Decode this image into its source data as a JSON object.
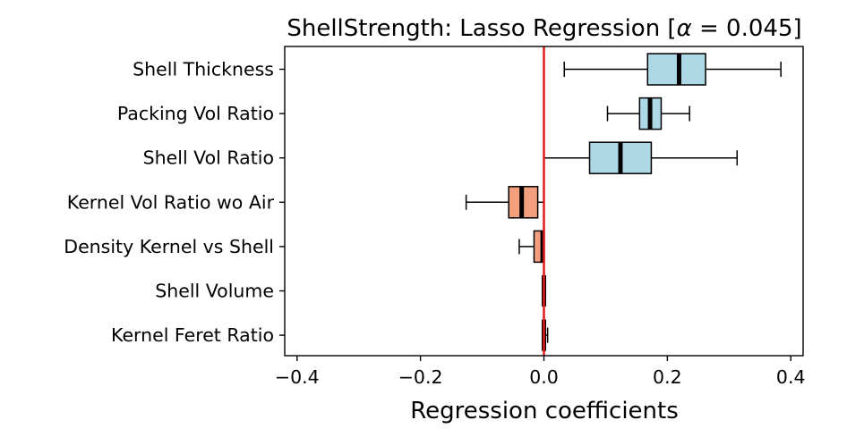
{
  "chart_data": {
    "type": "boxplot",
    "orientation": "horizontal",
    "title_prefix": "ShellStrength: Lasso Regression [",
    "title_alpha": "α",
    "title_suffix": " = 0.045]",
    "xlabel": "Regression coefficients",
    "xlim": [
      -0.42,
      0.42
    ],
    "xticks": [
      -0.4,
      -0.2,
      0.0,
      0.2,
      0.4
    ],
    "xtick_labels": [
      "−0.4",
      "−0.2",
      "0.0",
      "0.2",
      "0.4"
    ],
    "reference_line": {
      "x": 0.0,
      "color": "#e31a1c"
    },
    "colors": {
      "positive": "#add8e6",
      "negative": "#f4a07f",
      "median": "#000000"
    },
    "categories": [
      {
        "label": "Shell Thickness",
        "whisker_low": 0.033,
        "q1": 0.168,
        "median": 0.219,
        "q3": 0.262,
        "whisker_high": 0.384,
        "sign": "positive"
      },
      {
        "label": "Packing Vol Ratio",
        "whisker_low": 0.103,
        "q1": 0.155,
        "median": 0.172,
        "q3": 0.19,
        "whisker_high": 0.236,
        "sign": "positive"
      },
      {
        "label": "Shell Vol Ratio",
        "whisker_low": 0.0,
        "q1": 0.074,
        "median": 0.124,
        "q3": 0.174,
        "whisker_high": 0.313,
        "sign": "positive"
      },
      {
        "label": "Kernel Vol Ratio wo Air",
        "whisker_low": -0.126,
        "q1": -0.057,
        "median": -0.036,
        "q3": -0.01,
        "whisker_high": 0.0,
        "sign": "negative"
      },
      {
        "label": "Density Kernel vs Shell",
        "whisker_low": -0.04,
        "q1": -0.016,
        "median": -0.002,
        "q3": 0.0,
        "whisker_high": 0.0,
        "sign": "negative"
      },
      {
        "label": "Shell Volume",
        "whisker_low": 0.0,
        "q1": 0.0,
        "median": 0.0,
        "q3": 0.0,
        "whisker_high": 0.0,
        "sign": "positive"
      },
      {
        "label": "Kernel Feret Ratio",
        "whisker_low": -0.001,
        "q1": 0.0,
        "median": 0.0,
        "q3": 0.001,
        "whisker_high": 0.006,
        "sign": "positive"
      }
    ]
  }
}
